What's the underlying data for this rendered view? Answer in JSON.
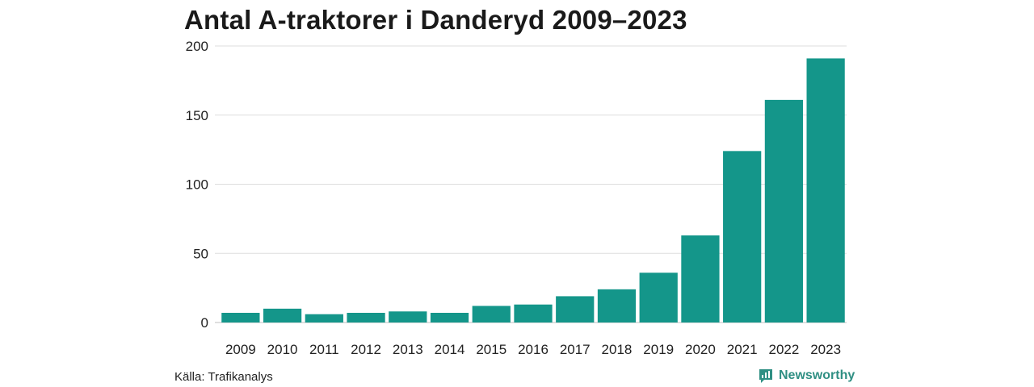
{
  "chart_data": {
    "type": "bar",
    "title": "Antal A-traktorer i Danderyd 2009–2023",
    "categories": [
      "2009",
      "2010",
      "2011",
      "2012",
      "2013",
      "2014",
      "2015",
      "2016",
      "2017",
      "2018",
      "2019",
      "2020",
      "2021",
      "2022",
      "2023"
    ],
    "values": [
      7,
      10,
      6,
      7,
      8,
      7,
      12,
      13,
      19,
      24,
      36,
      63,
      124,
      161,
      191
    ],
    "ylim": [
      0,
      200
    ],
    "yticks": [
      0,
      50,
      100,
      150,
      200
    ],
    "xlabel": "",
    "ylabel": "",
    "grid": true,
    "bar_color": "#14968a",
    "grid_color": "#dddddd"
  },
  "footer": {
    "source": "Källa: Trafikanalys",
    "brand": "Newsworthy",
    "brand_color": "#2f8f83",
    "brand_icon": "newsworthy-logo-icon"
  }
}
